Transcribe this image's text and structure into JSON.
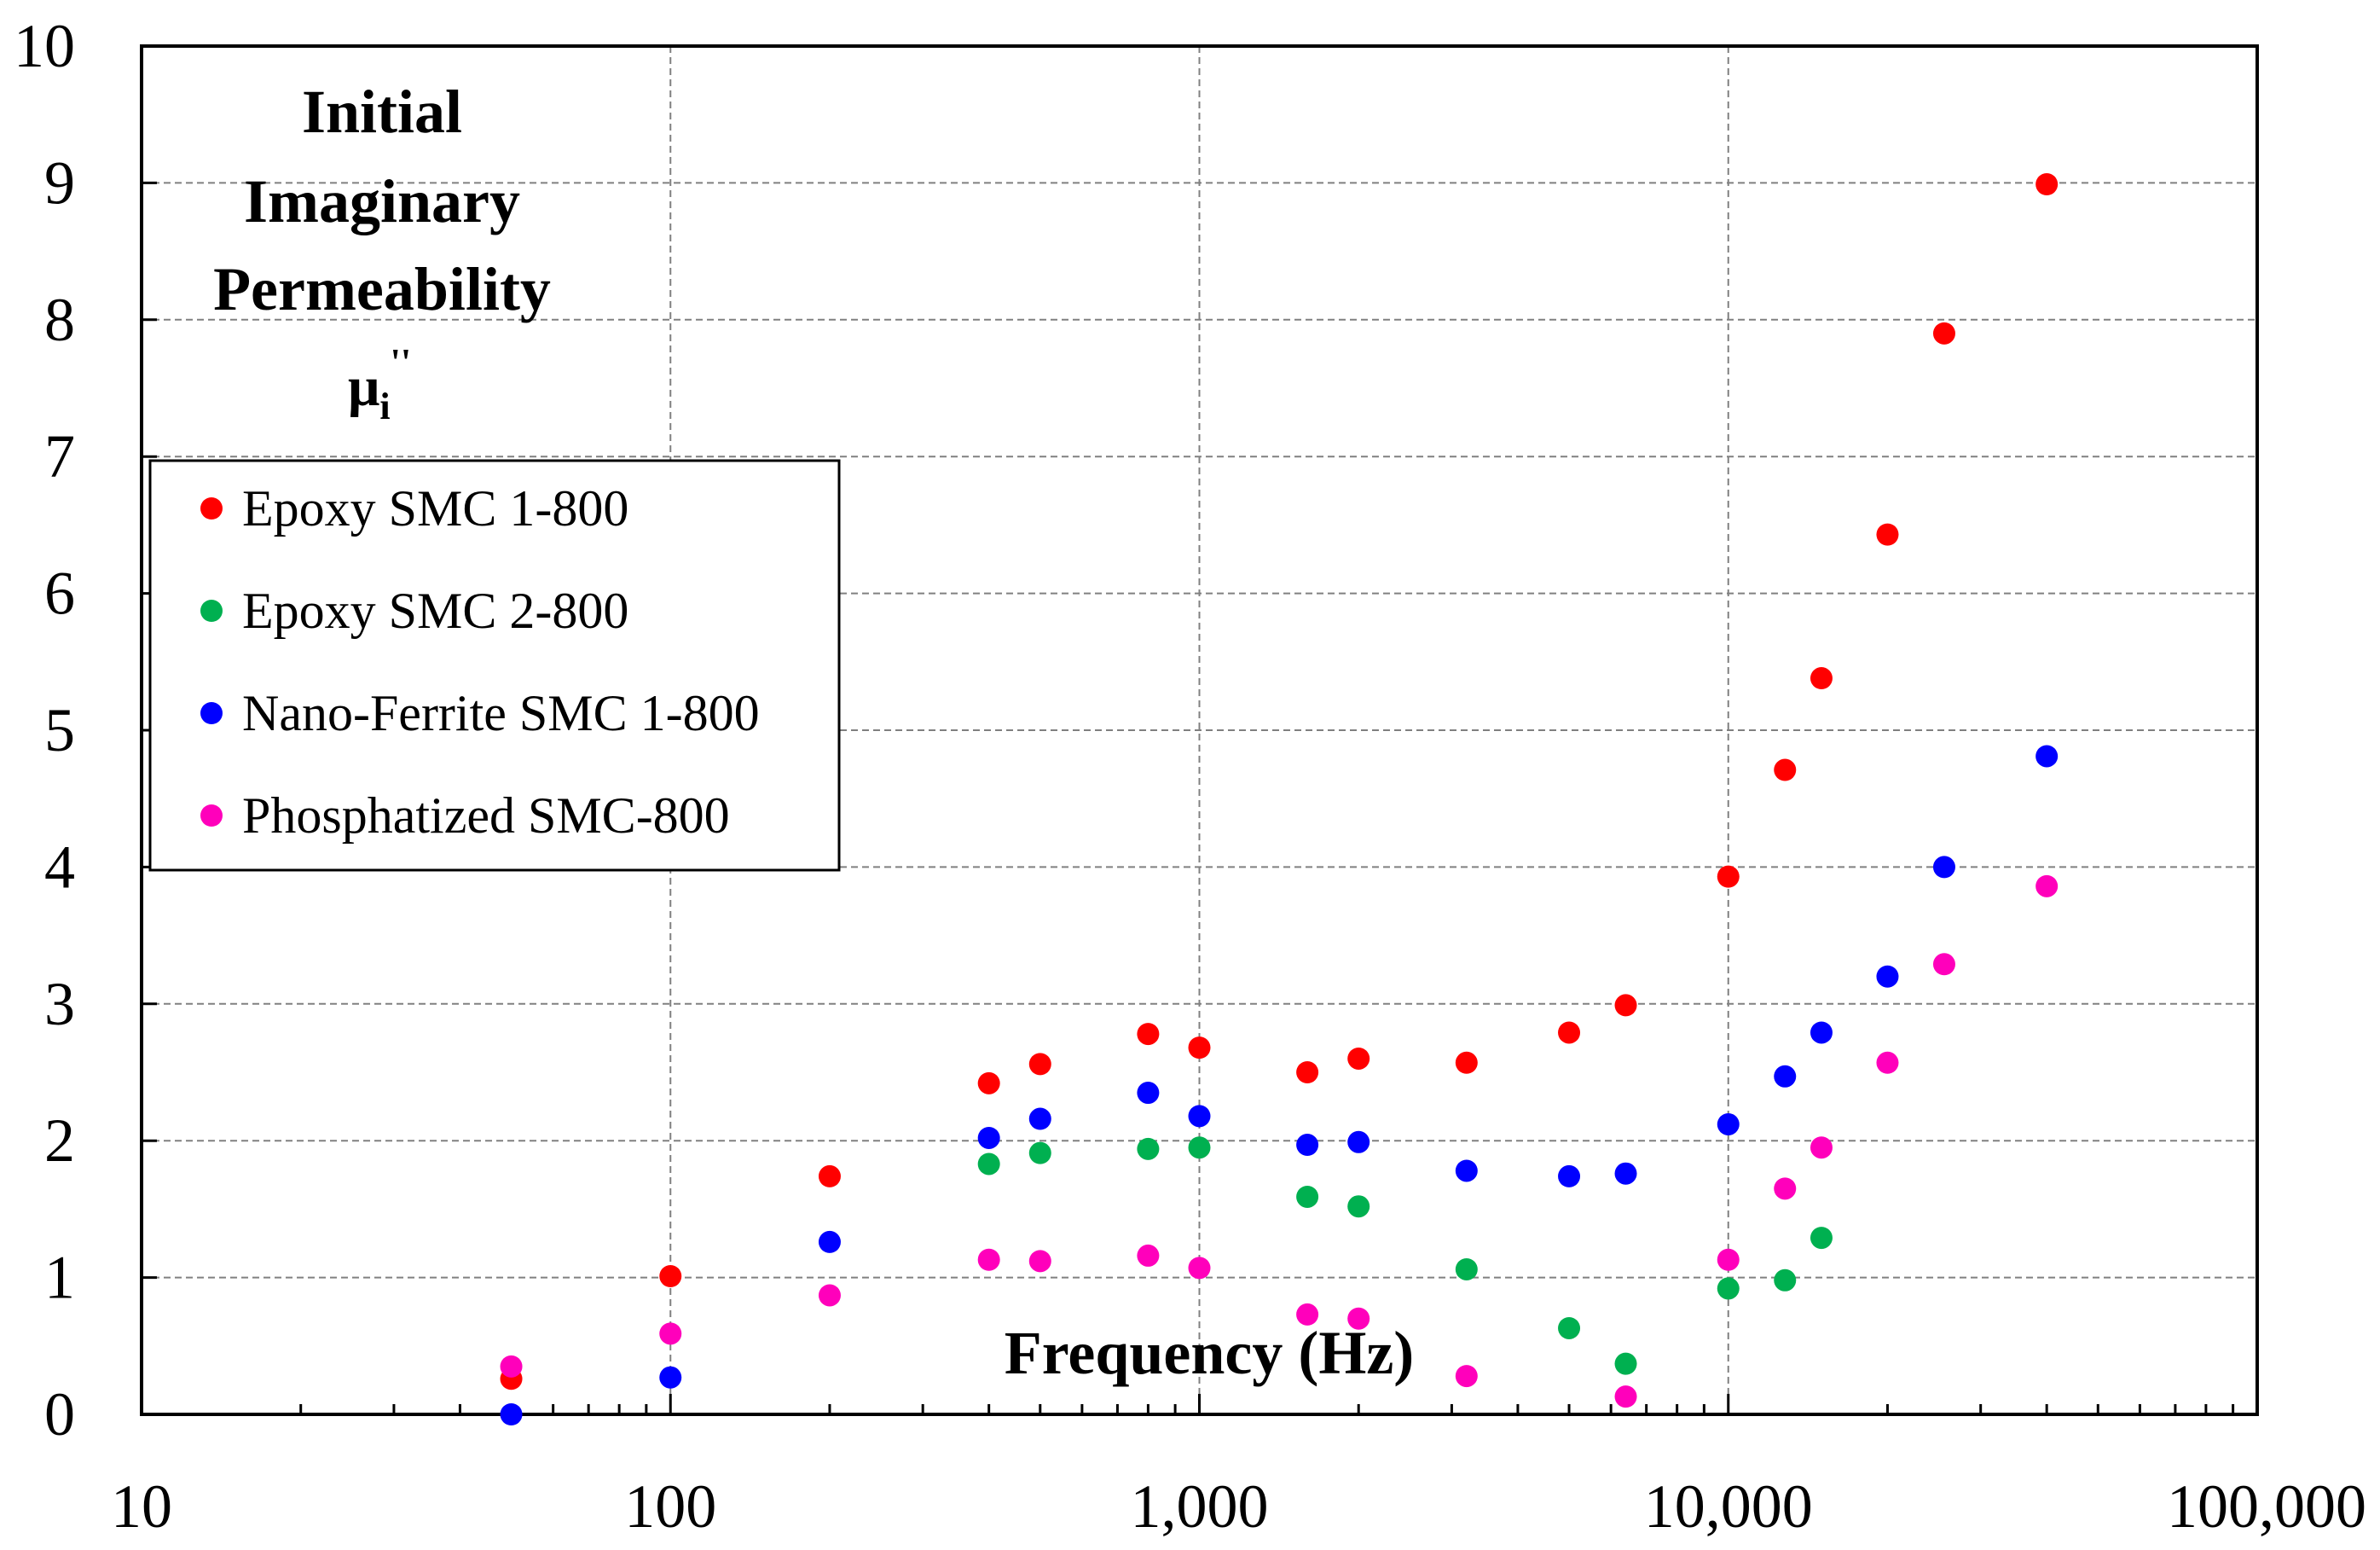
{
  "chart_data": {
    "type": "scatter",
    "title_lines": [
      "Initial",
      "Imaginary",
      "Permeability"
    ],
    "ylabel_symbol": "μ",
    "ylabel_subscript": "i",
    "ylabel_superscript": "''",
    "xlabel": "Frequency (Hz)",
    "x_scale": "log",
    "xlim": [
      10,
      100000
    ],
    "ylim": [
      0,
      10
    ],
    "x_ticks": [
      10,
      100,
      1000,
      10000,
      100000
    ],
    "x_tick_labels": [
      "10",
      "100",
      "1,000",
      "10,000",
      "100,000"
    ],
    "y_ticks": [
      0,
      1,
      2,
      3,
      4,
      5,
      6,
      7,
      8,
      9,
      10
    ],
    "y_tick_labels": [
      "0",
      "1",
      "2",
      "3",
      "4",
      "5",
      "6",
      "7",
      "8",
      "9",
      "10"
    ],
    "grid": true,
    "legend_position": "middle-left",
    "series": [
      {
        "name": "Epoxy SMC 1-800",
        "color": "#ff0000",
        "x": [
          50,
          100,
          200,
          400,
          500,
          800,
          1000,
          1600,
          2000,
          3200,
          5000,
          6400,
          10000,
          12800,
          15000,
          20000,
          25600,
          40000
        ],
        "y": [
          0.26,
          1.01,
          1.74,
          2.42,
          2.56,
          2.78,
          2.68,
          2.5,
          2.6,
          2.57,
          2.79,
          2.99,
          3.93,
          4.71,
          5.38,
          6.43,
          7.9,
          8.99
        ]
      },
      {
        "name": "Epoxy SMC 2-800",
        "color": "#00b050",
        "x": [
          400,
          500,
          800,
          1000,
          1600,
          2000,
          3200,
          5000,
          6400,
          10000,
          12800,
          15000
        ],
        "y": [
          1.83,
          1.91,
          1.94,
          1.95,
          1.59,
          1.52,
          1.06,
          0.63,
          0.37,
          0.92,
          0.98,
          1.29
        ]
      },
      {
        "name": "Nano-Ferrite SMC 1-800",
        "color": "#0000ff",
        "x": [
          50,
          100,
          200,
          400,
          500,
          800,
          1000,
          1600,
          2000,
          3200,
          5000,
          6400,
          10000,
          12800,
          15000,
          20000,
          25600,
          40000
        ],
        "y": [
          0.0,
          0.27,
          1.26,
          2.02,
          2.16,
          2.35,
          2.18,
          1.97,
          1.99,
          1.78,
          1.74,
          1.76,
          2.12,
          2.47,
          2.79,
          3.2,
          4.0,
          4.81
        ]
      },
      {
        "name": "Phosphatized SMC-800",
        "color": "#ff00bb",
        "x": [
          50,
          100,
          200,
          400,
          500,
          800,
          1000,
          1600,
          2000,
          3200,
          6400,
          10000,
          12800,
          15000,
          20000,
          25600,
          40000
        ],
        "y": [
          0.35,
          0.59,
          0.87,
          1.13,
          1.12,
          1.16,
          1.07,
          0.73,
          0.7,
          0.28,
          0.13,
          1.13,
          1.65,
          1.95,
          2.57,
          3.29,
          3.86
        ]
      }
    ]
  }
}
